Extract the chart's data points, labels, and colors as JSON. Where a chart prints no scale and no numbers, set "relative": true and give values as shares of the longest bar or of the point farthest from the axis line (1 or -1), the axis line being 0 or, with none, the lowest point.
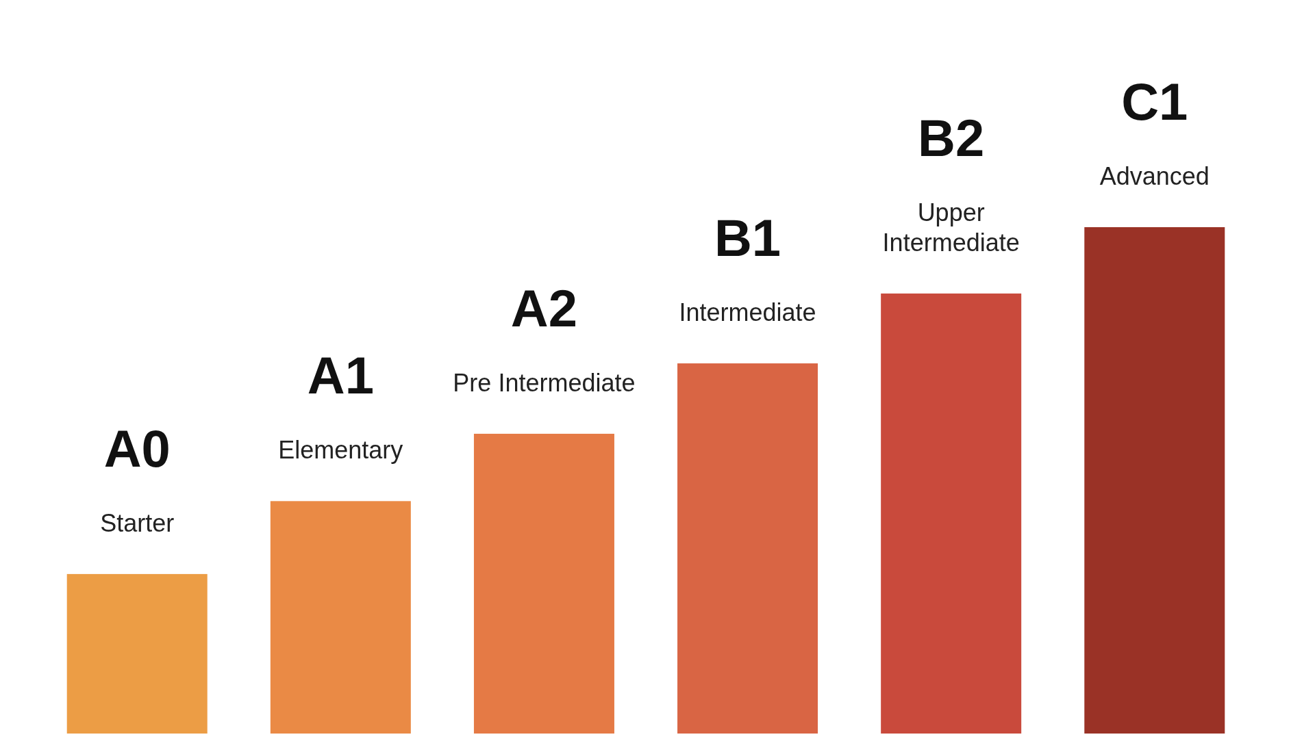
{
  "chart_data": {
    "type": "bar",
    "relative": true,
    "categories": [
      "A0",
      "A1",
      "A2",
      "B1",
      "B2",
      "C1"
    ],
    "values": [
      0.315,
      0.459,
      0.592,
      0.731,
      0.869,
      1
    ],
    "colors": [
      "#ec9d45",
      "#ea8a45",
      "#e57a45",
      "#d96544",
      "#c94a3c",
      "#9a3226"
    ],
    "annotations": [
      {
        "text": "Starter",
        "x": "A0",
        "y": 0.315
      },
      {
        "text": "Elementary",
        "x": "A1",
        "y": 0.459
      },
      {
        "text": "Pre Intermediate",
        "x": "A2",
        "y": 0.592
      },
      {
        "text": "Intermediate",
        "x": "B1",
        "y": 0.731
      },
      {
        "text": "Upper\nIntermediate",
        "x": "B2",
        "y": 0.869
      },
      {
        "text": "Advanced",
        "x": "C1",
        "y": 1
      }
    ]
  }
}
